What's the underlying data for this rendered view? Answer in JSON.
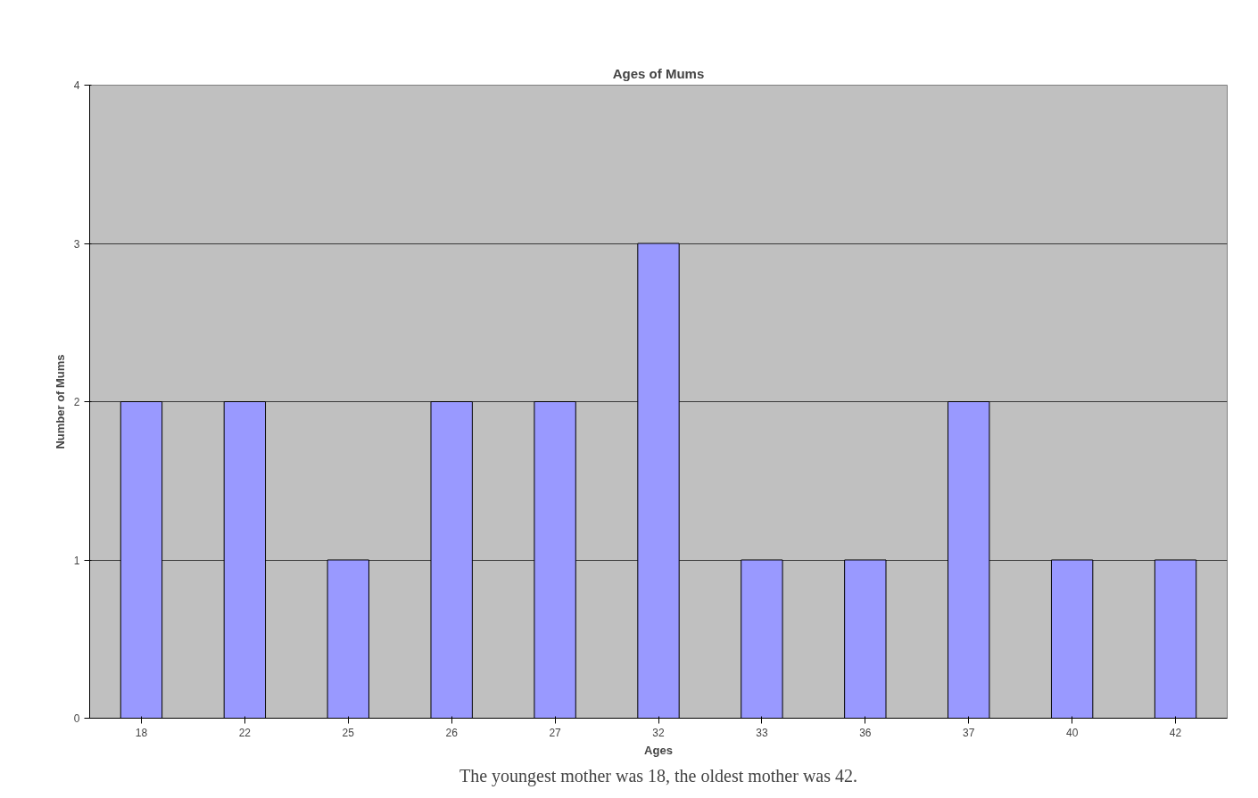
{
  "chart_data": {
    "type": "bar",
    "title": "Ages of Mums",
    "xlabel": "Ages",
    "ylabel": "Number of Mums",
    "categories": [
      "18",
      "22",
      "25",
      "26",
      "27",
      "32",
      "33",
      "36",
      "37",
      "40",
      "42"
    ],
    "values": [
      2,
      2,
      1,
      2,
      2,
      3,
      1,
      1,
      2,
      1,
      1
    ],
    "color": "#9999ff",
    "ylim": [
      0,
      4
    ],
    "yticks": [
      0,
      1,
      2,
      3,
      4
    ],
    "grid": "y",
    "annotations": [
      "The youngest mother was 18, the oldest mother was 42."
    ]
  }
}
